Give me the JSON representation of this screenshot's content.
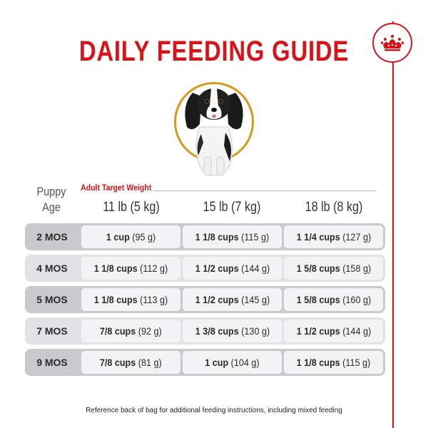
{
  "title": "DAILY FEEDING GUIDE",
  "colors": {
    "brand_red": "#d7141a",
    "ring_gold": "#d89a1b",
    "row_dark": "#c9c9ce",
    "row_light": "#e1e1e6"
  },
  "icons": {
    "logo": "royal-crown-icon",
    "photo": "puppy-photo"
  },
  "header": {
    "puppy_age": "Puppy Age",
    "adult_target_weight": "Adult Target Weight",
    "columns": [
      "11 lb (5 kg)",
      "15 lb (7 kg)",
      "18 lb (8 kg)"
    ]
  },
  "rows": [
    {
      "age": "2 MOS",
      "cells": [
        {
          "amount": "1 cup",
          "metric": "(95 g)"
        },
        {
          "amount": "1 1/8 cups",
          "metric": "(115 g)"
        },
        {
          "amount": "1 1/4 cups",
          "metric": "(127 g)"
        }
      ]
    },
    {
      "age": "4 MOS",
      "cells": [
        {
          "amount": "1 1/8 cups",
          "metric": "(112 g)"
        },
        {
          "amount": "1 1/2 cups",
          "metric": "(144 g)"
        },
        {
          "amount": "1 5/8 cups",
          "metric": "(158 g)"
        }
      ]
    },
    {
      "age": "5 MOS",
      "cells": [
        {
          "amount": "1 1/8 cups",
          "metric": "(113 g)"
        },
        {
          "amount": "1 1/2 cups",
          "metric": "(145 g)"
        },
        {
          "amount": "1 5/8 cups",
          "metric": "(160 g)"
        }
      ]
    },
    {
      "age": "7 MOS",
      "cells": [
        {
          "amount": "7/8 cups",
          "metric": "(92 g)"
        },
        {
          "amount": "1 3/8 cups",
          "metric": "(130 g)"
        },
        {
          "amount": "1 1/2 cups",
          "metric": "(144 g)"
        }
      ]
    },
    {
      "age": "9 MOS",
      "cells": [
        {
          "amount": "7/8 cups",
          "metric": "(81 g)"
        },
        {
          "amount": "1 cup",
          "metric": "(104 g)"
        },
        {
          "amount": "1 1/8 cups",
          "metric": "(115 g)"
        }
      ]
    }
  ],
  "footer": "Reference back of bag for additional feeding instructions, including mixed feeding"
}
